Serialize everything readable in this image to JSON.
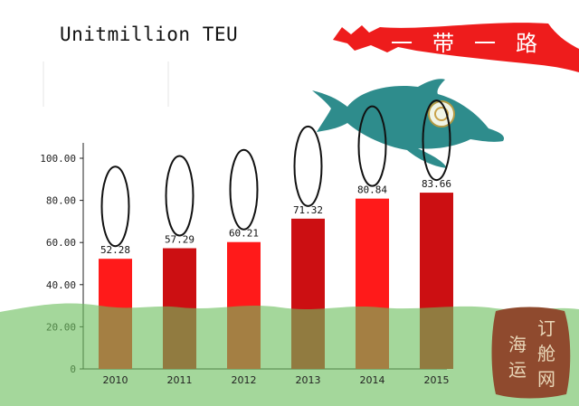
{
  "chart_data": {
    "type": "bar",
    "title": "Unitmillion TEU",
    "categories": [
      "2010",
      "2011",
      "2012",
      "2013",
      "2014",
      "2015"
    ],
    "values": [
      52.28,
      57.29,
      60.21,
      71.32,
      80.84,
      83.66
    ],
    "value_labels": [
      "52.28",
      "57.29",
      "60.21",
      "71.32",
      "80.84",
      "83.66"
    ],
    "y_ticks": [
      "0",
      "20.00",
      "40.00",
      "60.00",
      "80.00",
      "100.00"
    ],
    "ylim": [
      0,
      100
    ],
    "grid": false,
    "legend": "none",
    "bar_colors": [
      "#ff1a1a",
      "#cc0f12",
      "#ff1a1a",
      "#cc0f12",
      "#ff1a1a",
      "#cc0f12"
    ]
  },
  "banner": {
    "text": [
      "一",
      "带",
      "一",
      "路"
    ],
    "color": "#ee1c1c"
  },
  "seal": {
    "text": [
      "订",
      "舱",
      "网",
      "海",
      "运"
    ],
    "color": "#8f4a2e"
  },
  "colors": {
    "sea": "#6cbf5d",
    "dolphin": "#2e8c8c"
  }
}
